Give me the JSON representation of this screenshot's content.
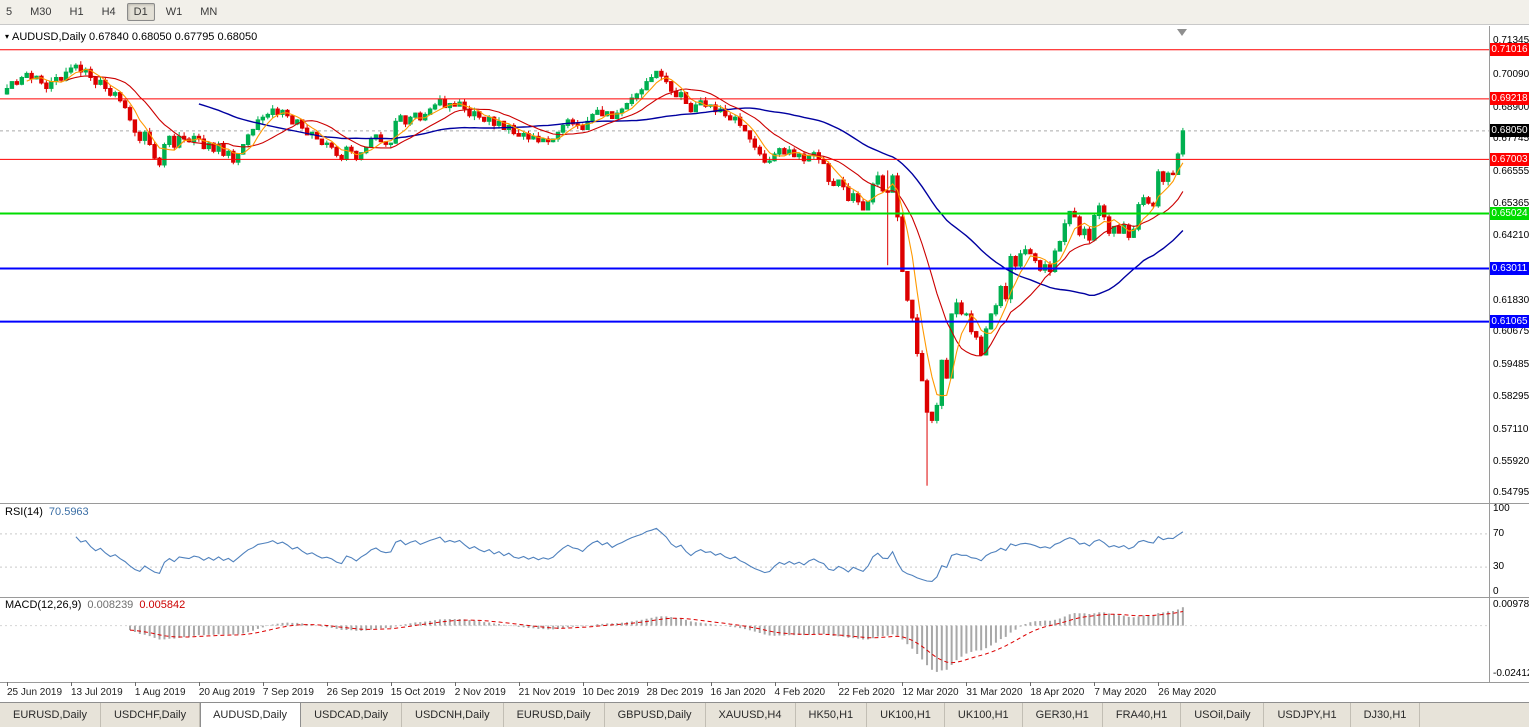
{
  "toolbar": {
    "timeframes": [
      {
        "label": "5",
        "active": false
      },
      {
        "label": "M30",
        "active": false
      },
      {
        "label": "H1",
        "active": false
      },
      {
        "label": "H4",
        "active": false
      },
      {
        "label": "D1",
        "active": true
      },
      {
        "label": "W1",
        "active": false
      },
      {
        "label": "MN",
        "active": false
      }
    ]
  },
  "chart": {
    "info_text": "AUDUSD,Daily 0.67840 0.68050 0.67795 0.68050"
  },
  "colors": {
    "up": "#00B050",
    "down": "#DD0000",
    "ma_fast": "#FF9900",
    "ma_mid": "#CC0000",
    "ma_slow": "#0000A0",
    "rsi_line": "#4F81BD",
    "macd_hist": "#A8A8A8",
    "macd_signal": "#DD0000",
    "level_red": "#FF0000",
    "level_green": "#00DC00",
    "level_blue": "#0000FF",
    "current_box": "#000000"
  },
  "chart_data": {
    "type": "candlestick",
    "symbol": "AUDUSD",
    "timeframe": "Daily",
    "current_ohlc": {
      "open": "0.67840",
      "high": "0.68050",
      "low": "0.67795",
      "close": "0.68050"
    },
    "y_range": {
      "top": 0.7185,
      "bottom": 0.545
    },
    "price_axis_ticks": [
      "0.71345",
      "0.70090",
      "0.68900",
      "0.67745",
      "0.66555",
      "0.65365",
      "0.64210",
      "0.61830",
      "0.60675",
      "0.59485",
      "0.58295",
      "0.57110",
      "0.55920",
      "0.54795"
    ],
    "current_price": {
      "label": "0.68050",
      "value": 0.6805
    },
    "hlines": [
      {
        "label": "0.71016",
        "value": 0.71016,
        "color": "#FF0000",
        "thickness": 1
      },
      {
        "label": "0.69218",
        "value": 0.69218,
        "color": "#FF0000",
        "thickness": 1
      },
      {
        "label": "0.67003",
        "value": 0.67003,
        "color": "#FF0000",
        "thickness": 1
      },
      {
        "label": "0.65024",
        "value": 0.65024,
        "color": "#00DC00",
        "thickness": 2
      },
      {
        "label": "0.63011",
        "value": 0.63011,
        "color": "#0000FF",
        "thickness": 2
      },
      {
        "label": "0.61065",
        "value": 0.61065,
        "color": "#0000FF",
        "thickness": 2
      }
    ],
    "x_dates": [
      "25 Jun 2019",
      "13 Jul 2019",
      "1 Aug 2019",
      "20 Aug 2019",
      "7 Sep 2019",
      "26 Sep 2019",
      "15 Oct 2019",
      "2 Nov 2019",
      "21 Nov 2019",
      "10 Dec 2019",
      "28 Dec 2019",
      "16 Jan 2020",
      "4 Feb 2020",
      "22 Feb 2020",
      "12 Mar 2020",
      "31 Mar 2020",
      "18 Apr 2020",
      "7 May 2020",
      "26 May 2020"
    ],
    "candles_per_date_tick": 13,
    "first_open": 0.694,
    "closes": [
      0.696,
      0.6985,
      0.6975,
      0.7,
      0.7015,
      0.6995,
      0.7005,
      0.698,
      0.696,
      0.6985,
      0.7,
      0.699,
      0.702,
      0.7035,
      0.7045,
      0.702,
      0.703,
      0.7,
      0.6975,
      0.699,
      0.696,
      0.6935,
      0.6945,
      0.6915,
      0.689,
      0.6845,
      0.68,
      0.677,
      0.68,
      0.6755,
      0.6705,
      0.668,
      0.6755,
      0.6785,
      0.6745,
      0.6785,
      0.6775,
      0.6765,
      0.6785,
      0.6775,
      0.674,
      0.676,
      0.673,
      0.6755,
      0.6715,
      0.673,
      0.669,
      0.672,
      0.6755,
      0.679,
      0.681,
      0.6845,
      0.6855,
      0.6865,
      0.6885,
      0.6865,
      0.688,
      0.686,
      0.683,
      0.6845,
      0.6815,
      0.679,
      0.68,
      0.6775,
      0.6755,
      0.676,
      0.6745,
      0.6715,
      0.67,
      0.6745,
      0.673,
      0.67,
      0.6725,
      0.6745,
      0.6775,
      0.679,
      0.6765,
      0.6755,
      0.676,
      0.684,
      0.686,
      0.683,
      0.6855,
      0.687,
      0.6845,
      0.6865,
      0.6885,
      0.69,
      0.692,
      0.689,
      0.6905,
      0.6895,
      0.691,
      0.6885,
      0.686,
      0.6875,
      0.6855,
      0.684,
      0.6855,
      0.6825,
      0.684,
      0.681,
      0.6825,
      0.6795,
      0.6785,
      0.6795,
      0.6775,
      0.6785,
      0.6765,
      0.6775,
      0.6765,
      0.6775,
      0.68,
      0.6825,
      0.6845,
      0.683,
      0.6825,
      0.681,
      0.684,
      0.6865,
      0.688,
      0.686,
      0.6875,
      0.685,
      0.687,
      0.6885,
      0.6905,
      0.6925,
      0.694,
      0.6955,
      0.6985,
      0.7,
      0.7023,
      0.7005,
      0.6985,
      0.695,
      0.693,
      0.6945,
      0.6905,
      0.6875,
      0.69,
      0.6915,
      0.6895,
      0.69,
      0.6875,
      0.6885,
      0.686,
      0.6845,
      0.6855,
      0.6825,
      0.6805,
      0.6775,
      0.6745,
      0.672,
      0.669,
      0.6695,
      0.672,
      0.674,
      0.672,
      0.6735,
      0.671,
      0.672,
      0.6695,
      0.6715,
      0.6725,
      0.67,
      0.6685,
      0.662,
      0.6605,
      0.6625,
      0.66,
      0.655,
      0.6575,
      0.6545,
      0.6515,
      0.6545,
      0.661,
      0.664,
      0.6585,
      0.658,
      0.664,
      0.649,
      0.629,
      0.6185,
      0.612,
      0.599,
      0.589,
      0.5775,
      0.5745,
      0.58,
      0.5965,
      0.59,
      0.6135,
      0.6175,
      0.6135,
      0.6135,
      0.607,
      0.605,
      0.5985,
      0.608,
      0.6135,
      0.6165,
      0.6235,
      0.619,
      0.6345,
      0.631,
      0.6355,
      0.637,
      0.6355,
      0.633,
      0.6295,
      0.6315,
      0.629,
      0.6365,
      0.64,
      0.6465,
      0.651,
      0.649,
      0.6425,
      0.6445,
      0.6405,
      0.6495,
      0.653,
      0.649,
      0.643,
      0.6455,
      0.643,
      0.646,
      0.6415,
      0.6445,
      0.6535,
      0.656,
      0.654,
      0.653,
      0.6655,
      0.662,
      0.665,
      0.6645,
      0.672,
      0.6805
    ],
    "wick_overrides": {
      "31": {
        "low": 0.6672
      },
      "179": {
        "high": 0.666,
        "low": 0.6313
      },
      "187": {
        "low": 0.5506
      }
    },
    "moving_averages": [
      {
        "name": "slow",
        "period": 40,
        "color": "#0000A0"
      },
      {
        "name": "mid",
        "period": 13,
        "color": "#CC0000"
      },
      {
        "name": "fast",
        "period": 5,
        "color": "#FF9900"
      }
    ],
    "indicators": {
      "rsi": {
        "label": "RSI(14)",
        "period": 14,
        "current": "70.5963",
        "axis": [
          "100",
          "70",
          "30",
          "0"
        ],
        "levels": [
          70,
          30
        ]
      },
      "macd": {
        "label": "MACD(12,26,9)",
        "fast": 12,
        "slow": 26,
        "signal": 9,
        "current_main": "0.008239",
        "current_signal": "0.005842",
        "axis_max": 0.009781,
        "axis_min": -0.02412,
        "axis_max_label": "0.009781",
        "axis_min_label": "-0.02412"
      }
    }
  },
  "tabs": [
    {
      "label": "EURUSD,Daily",
      "active": false
    },
    {
      "label": "USDCHF,Daily",
      "active": false
    },
    {
      "label": "AUDUSD,Daily",
      "active": true
    },
    {
      "label": "USDCAD,Daily",
      "active": false
    },
    {
      "label": "USDCNH,Daily",
      "active": false
    },
    {
      "label": "EURUSD,Daily",
      "active": false
    },
    {
      "label": "GBPUSD,Daily",
      "active": false
    },
    {
      "label": "XAUUSD,H4",
      "active": false
    },
    {
      "label": "HK50,H1",
      "active": false
    },
    {
      "label": "UK100,H1",
      "active": false
    },
    {
      "label": "UK100,H1",
      "active": false
    },
    {
      "label": "GER30,H1",
      "active": false
    },
    {
      "label": "FRA40,H1",
      "active": false
    },
    {
      "label": "USOil,Daily",
      "active": false
    },
    {
      "label": "USDJPY,H1",
      "active": false
    },
    {
      "label": "DJ30,H1",
      "active": false
    }
  ]
}
